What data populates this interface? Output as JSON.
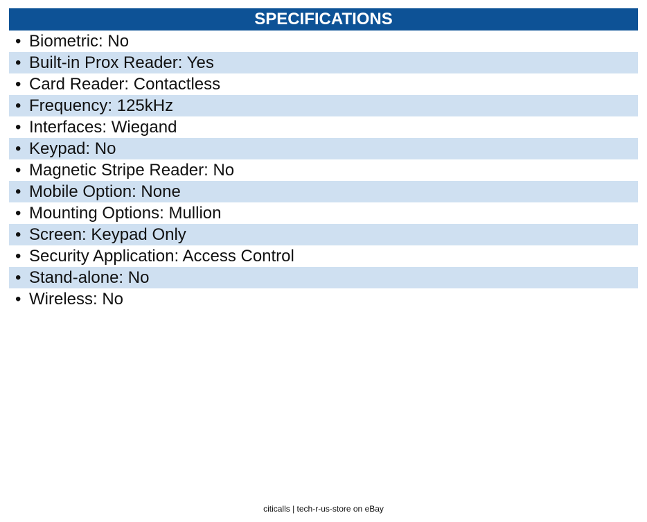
{
  "header": {
    "title": "SPECIFICATIONS"
  },
  "specs": [
    "Biometric: No",
    "Built-in Prox Reader: Yes",
    "Card Reader: Contactless",
    "Frequency: 125kHz",
    "Interfaces: Wiegand",
    "Keypad: No",
    "Magnetic Stripe Reader: No",
    "Mobile Option: None",
    "Mounting Options: Mullion",
    "Screen: Keypad Only",
    "Security Application: Access Control",
    "Stand-alone: No",
    "Wireless: No"
  ],
  "bullet": "•",
  "footer": {
    "text": "citicalls | tech-r-us-store on eBay"
  },
  "colors": {
    "header_bg": "#0d5296",
    "header_text": "#ffffff",
    "row_alt_bg": "#cfe0f1"
  }
}
